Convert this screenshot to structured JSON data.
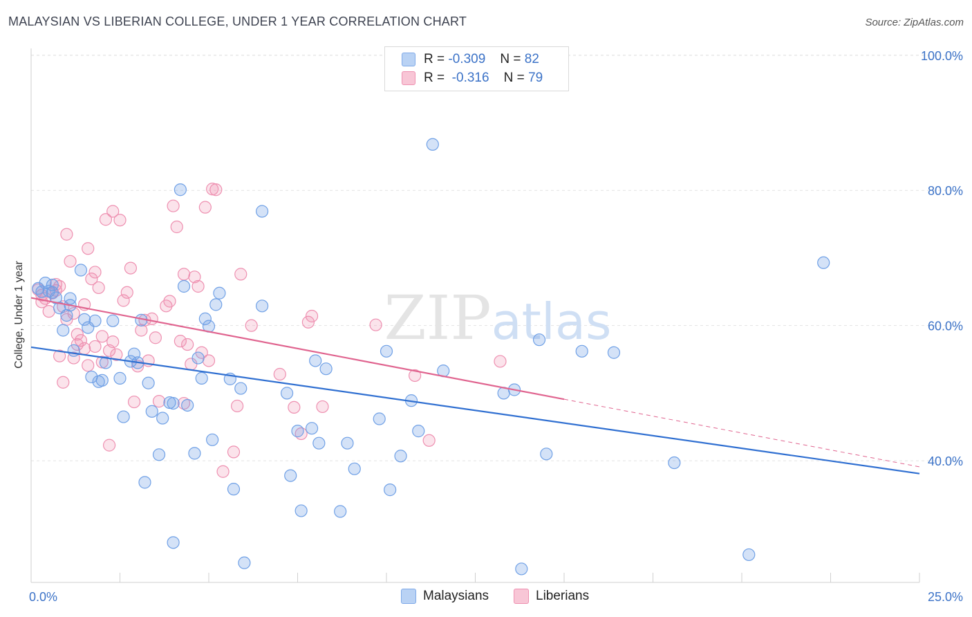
{
  "title": "MALAYSIAN VS LIBERIAN COLLEGE, UNDER 1 YEAR CORRELATION CHART",
  "source": "Source: ZipAtlas.com",
  "legend": [
    {
      "r_label": "R =",
      "r_value": "-0.309",
      "n_label": "N =",
      "n_value": "82"
    },
    {
      "r_label": "R =",
      "r_value": "-0.316",
      "n_label": "N =",
      "n_value": "79"
    }
  ],
  "bottom_legend": [
    "Malaysians",
    "Liberians"
  ],
  "chart_data": {
    "type": "scatter",
    "title": "MALAYSIAN VS LIBERIAN COLLEGE, UNDER 1 YEAR CORRELATION CHART",
    "xlabel": "",
    "ylabel": "College, Under 1 year",
    "xlim": [
      0,
      25
    ],
    "ylim": [
      22,
      101
    ],
    "x_tick_labels": [
      "0.0%",
      "25.0%"
    ],
    "y_ticks": [
      40,
      60,
      80,
      100
    ],
    "y_tick_labels": [
      "40.0%",
      "60.0%",
      "80.0%",
      "100.0%"
    ],
    "grid": true,
    "watermark": "ZIPatlas",
    "colors": {
      "malaysians": "#6fa0e6",
      "liberians": "#ee8fb0",
      "malaysians_line": "#2f6fd1",
      "liberians_line": "#e0648f",
      "axis_text": "#3b72c7"
    },
    "series": [
      {
        "name": "Malaysians",
        "r": -0.309,
        "n": 82,
        "trend": {
          "x0": 0,
          "y0": 56.8,
          "x1": 25,
          "y1": 38.1
        },
        "points": [
          [
            0.3,
            65.0
          ],
          [
            0.4,
            66.3
          ],
          [
            0.5,
            65.1
          ],
          [
            0.6,
            64.9
          ],
          [
            0.7,
            64.1
          ],
          [
            0.8,
            62.6
          ],
          [
            0.9,
            59.3
          ],
          [
            1.0,
            61.5
          ],
          [
            1.1,
            63.0
          ],
          [
            1.2,
            56.3
          ],
          [
            1.4,
            68.2
          ],
          [
            1.5,
            60.9
          ],
          [
            1.6,
            59.7
          ],
          [
            1.7,
            52.4
          ],
          [
            1.8,
            60.7
          ],
          [
            1.9,
            51.7
          ],
          [
            2.0,
            51.9
          ],
          [
            2.1,
            54.5
          ],
          [
            2.3,
            60.7
          ],
          [
            2.5,
            52.2
          ],
          [
            2.6,
            46.5
          ],
          [
            2.8,
            54.7
          ],
          [
            2.9,
            55.8
          ],
          [
            3.0,
            54.5
          ],
          [
            3.1,
            60.8
          ],
          [
            3.2,
            36.8
          ],
          [
            3.3,
            51.5
          ],
          [
            3.4,
            47.3
          ],
          [
            3.6,
            40.9
          ],
          [
            3.7,
            46.3
          ],
          [
            3.9,
            48.6
          ],
          [
            4.0,
            48.5
          ],
          [
            4.0,
            27.9
          ],
          [
            4.2,
            80.1
          ],
          [
            4.3,
            65.8
          ],
          [
            4.4,
            48.2
          ],
          [
            4.6,
            41.1
          ],
          [
            4.7,
            55.2
          ],
          [
            4.8,
            52.2
          ],
          [
            4.9,
            61.0
          ],
          [
            5.0,
            59.9
          ],
          [
            5.1,
            43.1
          ],
          [
            5.2,
            63.1
          ],
          [
            5.3,
            64.8
          ],
          [
            5.6,
            52.1
          ],
          [
            5.7,
            35.8
          ],
          [
            5.9,
            50.7
          ],
          [
            6.0,
            24.9
          ],
          [
            6.5,
            62.9
          ],
          [
            6.5,
            76.9
          ],
          [
            7.2,
            50.0
          ],
          [
            7.3,
            37.8
          ],
          [
            7.5,
            44.4
          ],
          [
            7.6,
            32.6
          ],
          [
            7.9,
            44.8
          ],
          [
            8.0,
            54.8
          ],
          [
            8.1,
            42.6
          ],
          [
            8.3,
            53.6
          ],
          [
            8.7,
            32.5
          ],
          [
            8.9,
            42.6
          ],
          [
            9.1,
            38.8
          ],
          [
            9.8,
            46.2
          ],
          [
            10.0,
            56.2
          ],
          [
            10.1,
            35.7
          ],
          [
            10.4,
            40.7
          ],
          [
            10.7,
            48.9
          ],
          [
            10.9,
            44.4
          ],
          [
            11.3,
            86.8
          ],
          [
            11.6,
            53.3
          ],
          [
            13.3,
            50.0
          ],
          [
            13.6,
            50.5
          ],
          [
            13.8,
            24.0
          ],
          [
            14.3,
            57.9
          ],
          [
            14.5,
            41.0
          ],
          [
            15.5,
            56.2
          ],
          [
            16.4,
            56.0
          ],
          [
            18.1,
            39.7
          ],
          [
            20.2,
            26.1
          ],
          [
            22.3,
            69.3
          ],
          [
            0.2,
            65.5
          ],
          [
            0.6,
            66.0
          ],
          [
            1.1,
            64.0
          ]
        ]
      },
      {
        "name": "Liberians",
        "r": -0.316,
        "n": 79,
        "trend": {
          "x0": 0,
          "y0": 64.1,
          "x1": 15,
          "y1": 49.1,
          "dashed_to_x": 25,
          "dashed_to_y": 39.1
        },
        "points": [
          [
            0.2,
            65.3
          ],
          [
            0.3,
            63.5
          ],
          [
            0.4,
            64.0
          ],
          [
            0.5,
            62.1
          ],
          [
            0.6,
            64.8
          ],
          [
            0.7,
            66.1
          ],
          [
            0.7,
            65.2
          ],
          [
            0.8,
            65.8
          ],
          [
            0.8,
            55.5
          ],
          [
            0.9,
            51.6
          ],
          [
            1.0,
            73.5
          ],
          [
            1.0,
            60.9
          ],
          [
            1.1,
            69.5
          ],
          [
            1.2,
            61.8
          ],
          [
            1.2,
            55.2
          ],
          [
            1.3,
            58.7
          ],
          [
            1.4,
            57.8
          ],
          [
            1.5,
            63.1
          ],
          [
            1.5,
            56.6
          ],
          [
            1.6,
            71.4
          ],
          [
            1.6,
            54.1
          ],
          [
            1.7,
            66.9
          ],
          [
            1.8,
            67.9
          ],
          [
            1.8,
            56.9
          ],
          [
            1.9,
            65.6
          ],
          [
            2.0,
            58.4
          ],
          [
            2.1,
            75.7
          ],
          [
            2.2,
            56.3
          ],
          [
            2.2,
            42.3
          ],
          [
            2.3,
            76.9
          ],
          [
            2.3,
            57.6
          ],
          [
            2.4,
            55.7
          ],
          [
            2.5,
            75.6
          ],
          [
            2.6,
            63.7
          ],
          [
            2.7,
            64.9
          ],
          [
            2.8,
            68.5
          ],
          [
            2.9,
            48.7
          ],
          [
            3.0,
            54.0
          ],
          [
            3.1,
            59.3
          ],
          [
            3.2,
            60.8
          ],
          [
            3.3,
            54.8
          ],
          [
            3.4,
            61.0
          ],
          [
            3.6,
            48.8
          ],
          [
            3.8,
            62.9
          ],
          [
            3.9,
            63.6
          ],
          [
            4.0,
            77.7
          ],
          [
            4.1,
            74.6
          ],
          [
            4.2,
            57.7
          ],
          [
            4.3,
            67.6
          ],
          [
            4.3,
            48.5
          ],
          [
            4.4,
            57.2
          ],
          [
            4.5,
            54.3
          ],
          [
            4.6,
            67.2
          ],
          [
            4.7,
            65.8
          ],
          [
            4.9,
            77.5
          ],
          [
            5.0,
            54.8
          ],
          [
            5.1,
            80.2
          ],
          [
            5.2,
            80.1
          ],
          [
            5.4,
            38.4
          ],
          [
            5.7,
            41.3
          ],
          [
            5.8,
            48.1
          ],
          [
            5.9,
            67.6
          ],
          [
            6.2,
            60.0
          ],
          [
            7.0,
            52.8
          ],
          [
            7.4,
            47.9
          ],
          [
            7.6,
            44.0
          ],
          [
            7.8,
            60.5
          ],
          [
            7.9,
            61.4
          ],
          [
            8.2,
            48.0
          ],
          [
            9.7,
            60.1
          ],
          [
            10.8,
            52.6
          ],
          [
            11.2,
            43.0
          ],
          [
            13.2,
            54.7
          ],
          [
            0.3,
            64.5
          ],
          [
            0.9,
            62.8
          ],
          [
            1.3,
            57.2
          ],
          [
            2.0,
            54.6
          ],
          [
            3.5,
            58.2
          ],
          [
            4.8,
            56.0
          ]
        ]
      }
    ]
  }
}
